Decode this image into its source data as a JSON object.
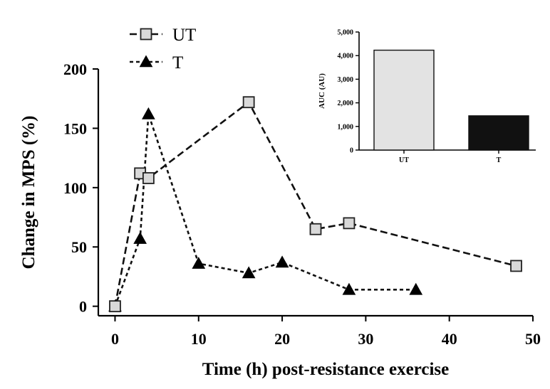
{
  "chart_data": [
    {
      "type": "line",
      "xlabel": "Time (h) post-resistance exercise",
      "ylabel": "Change in MPS (%)",
      "xlim": [
        -2,
        50
      ],
      "ylim": [
        -8,
        200
      ],
      "xticks": [
        "0",
        "10",
        "20",
        "30",
        "40",
        "50"
      ],
      "yticks": [
        "0",
        "50",
        "100",
        "150",
        "200"
      ],
      "grid": false,
      "legend": "top-left",
      "series": [
        {
          "name": "UT",
          "marker": "square",
          "color": "#d9d9d9",
          "line_style": "dashed",
          "x": [
            0,
            3,
            4,
            16,
            24,
            28,
            48
          ],
          "y": [
            0,
            112,
            108,
            172,
            65,
            70,
            34
          ]
        },
        {
          "name": "T",
          "marker": "triangle",
          "color": "#000000",
          "line_style": "dotted",
          "x": [
            0,
            3,
            4,
            10,
            16,
            20,
            28,
            36
          ],
          "y": [
            0,
            57,
            162,
            36,
            28,
            37,
            14,
            14
          ]
        }
      ]
    },
    {
      "type": "bar",
      "position": "inset-top-right",
      "ylabel": "AUC (AU)",
      "ylim": [
        0,
        5000
      ],
      "yticks": [
        "0",
        "1,000",
        "2,000",
        "3,000",
        "4,000",
        "5,000"
      ],
      "categories": [
        "UT",
        "T"
      ],
      "values": [
        4230,
        1450
      ],
      "colors": [
        "#e3e3e3",
        "#111111"
      ]
    }
  ]
}
